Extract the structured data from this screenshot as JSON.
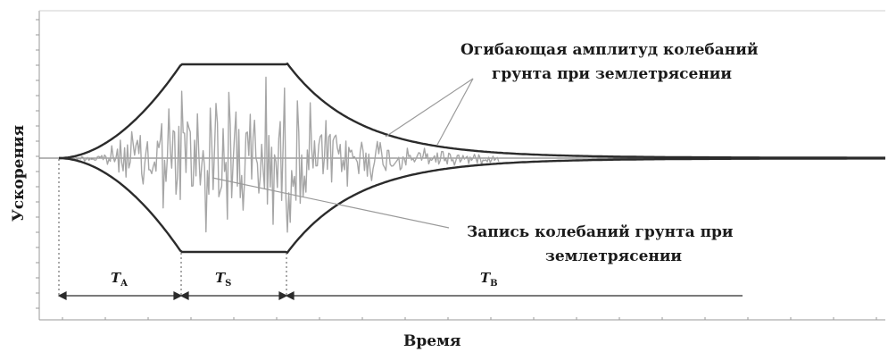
{
  "figure": {
    "y_axis_label": "Ускорения",
    "x_axis_label": "Время",
    "annotation_envelope": [
      "Огибающая амплитуд колебаний",
      "грунта при землетрясении"
    ],
    "annotation_record": [
      "Запись колебаний грунта при",
      "землетрясении"
    ],
    "phases": [
      {
        "letter": "T",
        "sub": "A"
      },
      {
        "letter": "T",
        "sub": "S"
      },
      {
        "letter": "T",
        "sub": "B"
      }
    ],
    "colors": {
      "envelope": "#2b2b2b",
      "record": "#a6a6a6",
      "axis": "#9a9a9a",
      "text": "#1a1a1a"
    }
  }
}
